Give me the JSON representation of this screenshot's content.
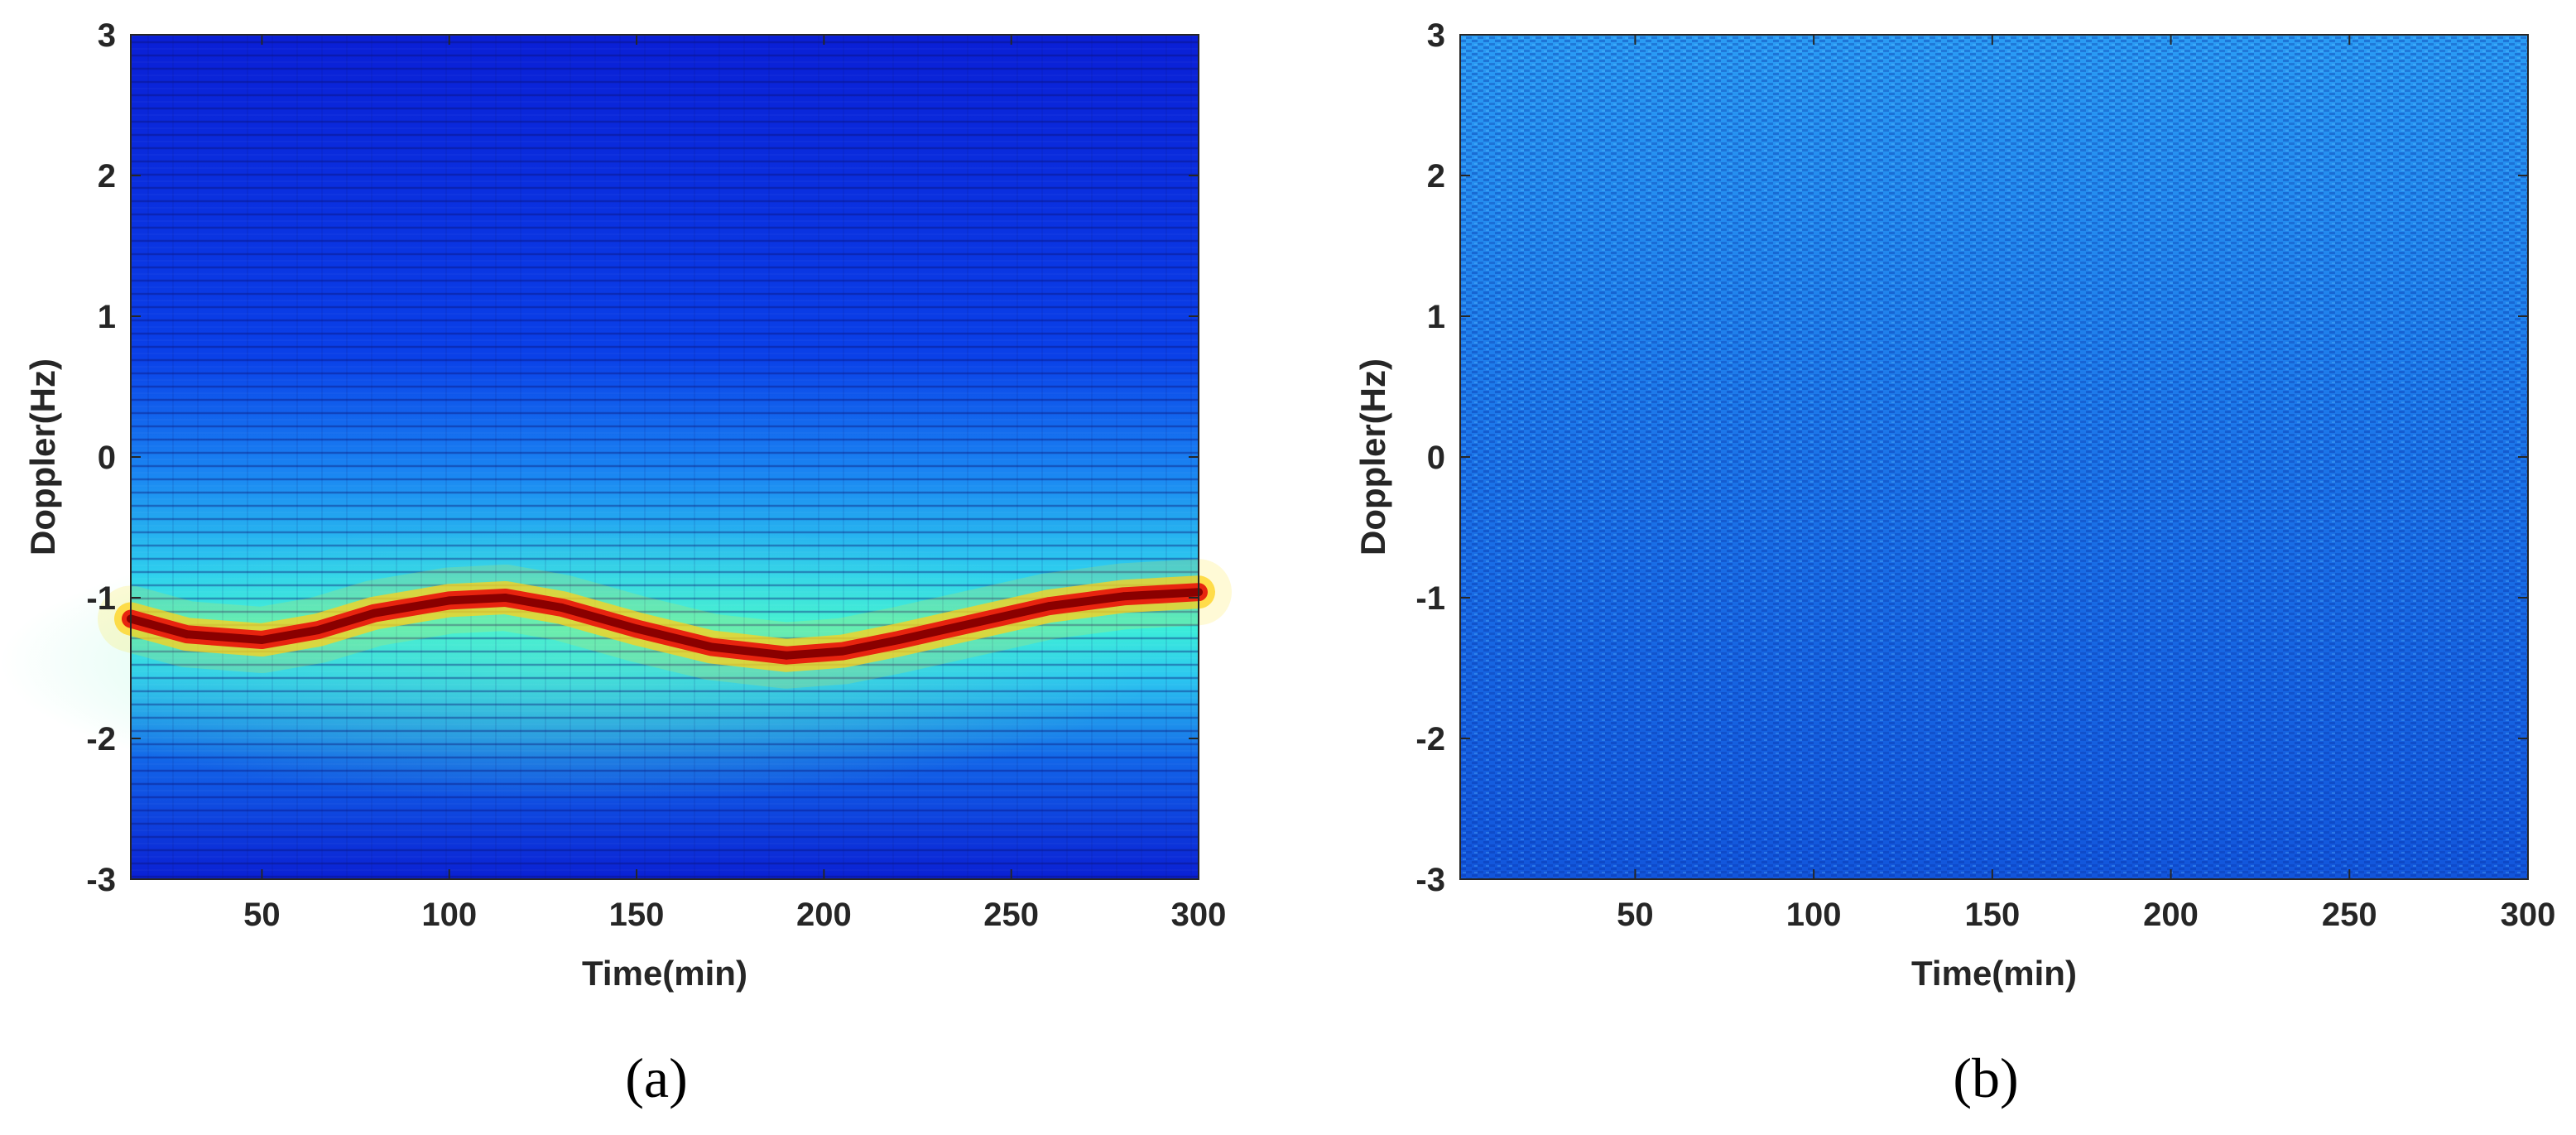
{
  "chart_data": [
    {
      "type": "heatmap",
      "panel_label": "(a)",
      "xlabel": "Time(min)",
      "ylabel": "Doppler(Hz)",
      "xlim": [
        15,
        300
      ],
      "ylim": [
        -3,
        3
      ],
      "xticks": [
        "50",
        "100",
        "150",
        "200",
        "250",
        "300"
      ],
      "yticks": [
        "3",
        "2",
        "1",
        "0",
        "-1",
        "-2",
        "-3"
      ],
      "colormap": "jet",
      "grid": false,
      "ridge": {
        "x": [
          15,
          30,
          50,
          65,
          80,
          100,
          115,
          130,
          150,
          170,
          190,
          205,
          220,
          240,
          260,
          280,
          300
        ],
        "y": [
          -1.15,
          -1.26,
          -1.3,
          -1.23,
          -1.11,
          -1.02,
          -1.0,
          -1.07,
          -1.22,
          -1.35,
          -1.41,
          -1.38,
          -1.3,
          -1.18,
          -1.06,
          -0.99,
          -0.96
        ]
      }
    },
    {
      "type": "heatmap",
      "panel_label": "(b)",
      "xlabel": "Time(min)",
      "ylabel": "Doppler(Hz)",
      "xlim": [
        1,
        300
      ],
      "ylim": [
        -3,
        3
      ],
      "xticks": [
        "50",
        "100",
        "150",
        "200",
        "250",
        "300"
      ],
      "yticks": [
        "3",
        "2",
        "1",
        "0",
        "-1",
        "-2",
        "-3"
      ],
      "colormap": "jet",
      "grid": false,
      "description_of_field": "uniform low-level noise, no target ridge"
    }
  ]
}
